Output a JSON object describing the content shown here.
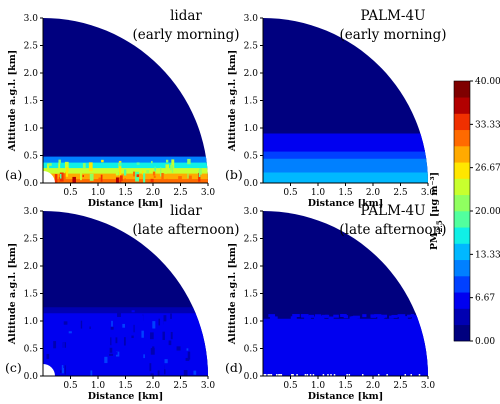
{
  "chart_data": {
    "type": "heatmap",
    "description_free": true,
    "panels": [
      {
        "id": "a",
        "panel_label": "(a)",
        "ann_line1": "lidar",
        "ann_line2": "(early morning)",
        "source": "lidar",
        "time": "early"
      },
      {
        "id": "b",
        "panel_label": "(b)",
        "ann_line1": "PALM-4U",
        "ann_line2": "(early morning)",
        "source": "palm",
        "time": "early"
      },
      {
        "id": "c",
        "panel_label": "(c)",
        "ann_line1": "lidar",
        "ann_line2": "(late afternoon)",
        "source": "lidar",
        "time": "late"
      },
      {
        "id": "d",
        "panel_label": "(d)",
        "ann_line1": "PALM-4U",
        "ann_line2": "(late afternoon)",
        "source": "palm",
        "time": "late"
      }
    ],
    "xlabel": "Distance [km]",
    "ylabel": "Altitude a.g.l. [km]",
    "x_ticks": [
      "0.5",
      "1.0",
      "1.5",
      "2.0",
      "2.5",
      "3.0"
    ],
    "y_ticks": [
      "0.0",
      "0.5",
      "1.0",
      "1.5",
      "2.0",
      "2.5",
      "3.0"
    ],
    "xlim": [
      0,
      3
    ],
    "ylim": [
      0,
      3
    ],
    "colorbar": {
      "label": "PM",
      "label_sub": "2.5",
      "label_unit": " [μg m⁻³]",
      "ticks": [
        "40.00",
        "33.33",
        "26.67",
        "20.00",
        "13.33",
        "6.67",
        "0.00"
      ],
      "range": [
        0,
        40
      ],
      "colors": [
        "#00007f",
        "#0000b2",
        "#0000f0",
        "#0040ff",
        "#0080ff",
        "#00b8ff",
        "#10f0e6",
        "#52ff9e",
        "#90ff60",
        "#c8ff2e",
        "#ffe600",
        "#ffaa00",
        "#ff6a00",
        "#f03000",
        "#b20000",
        "#7f0000"
      ]
    },
    "profiles": {
      "lidar_early": {
        "top_m": 0.45,
        "layers": [
          [
            0.0,
            32
          ],
          [
            0.08,
            28
          ],
          [
            0.18,
            24
          ],
          [
            0.28,
            17
          ],
          [
            0.38,
            10
          ]
        ],
        "background": 2
      },
      "palm_early": {
        "layers": [
          [
            0.0,
            14
          ],
          [
            0.2,
            12
          ],
          [
            0.32,
            10
          ],
          [
            0.45,
            9
          ],
          [
            0.58,
            7
          ],
          [
            0.75,
            5
          ]
        ],
        "background": 2
      },
      "lidar_late": {
        "layers": [
          [
            0.0,
            6
          ],
          [
            0.8,
            5.5
          ],
          [
            1.15,
            4
          ]
        ],
        "background": 2
      },
      "palm_late": {
        "layers": [
          [
            0.0,
            6
          ],
          [
            1.05,
            2
          ]
        ],
        "background": 2
      }
    }
  }
}
